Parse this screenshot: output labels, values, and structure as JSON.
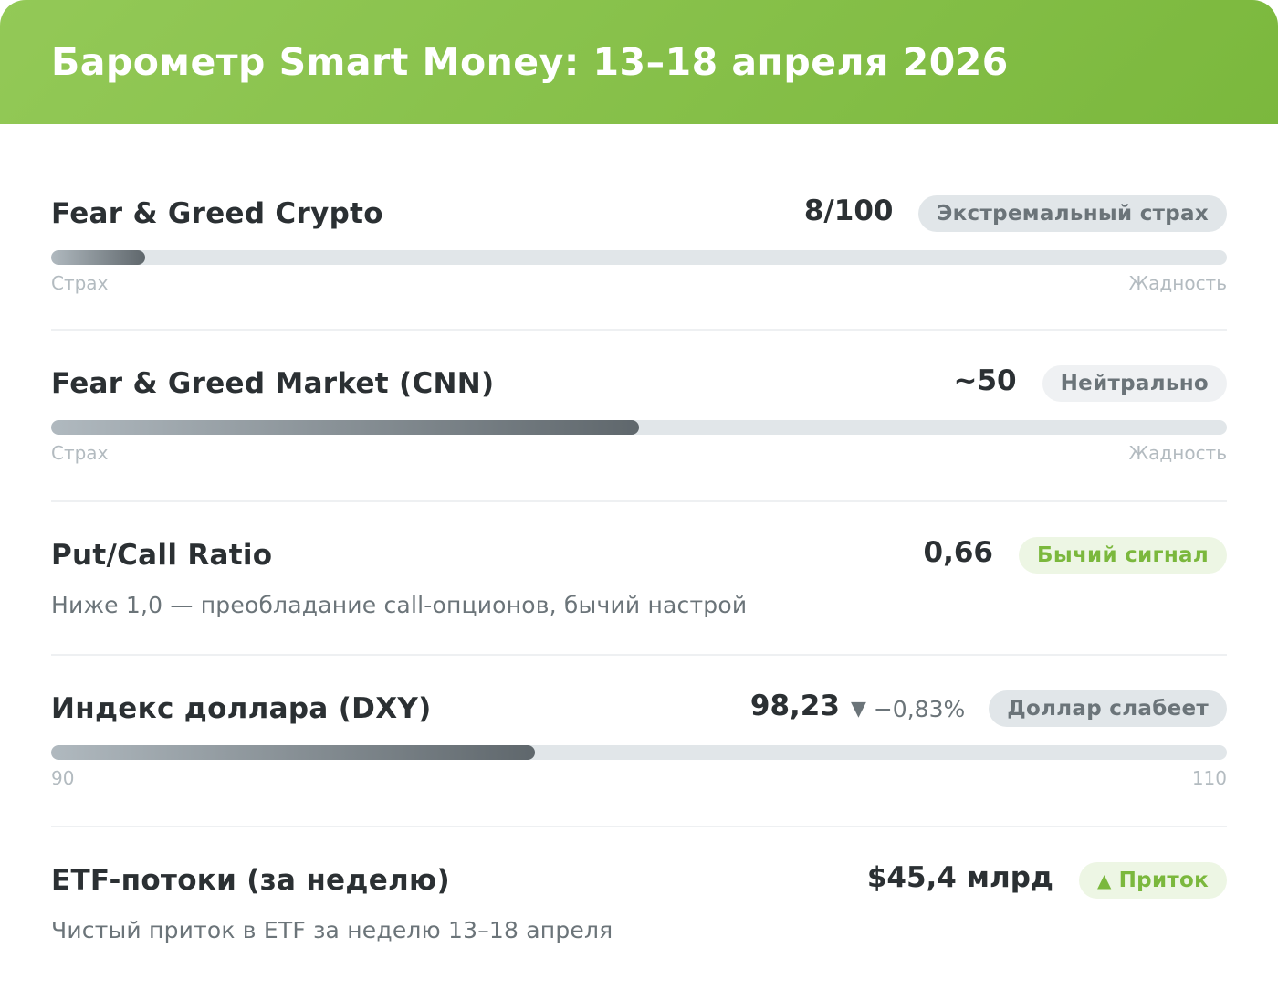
{
  "header": {
    "title": "Барометр Smart Money: 13–18 апреля 2026",
    "colors": {
      "start": "#93c957",
      "end": "#7bb83d"
    }
  },
  "metrics": {
    "crypto": {
      "label": "Fear & Greed Crypto",
      "value": "8/100",
      "badge": "Экстремальный страх",
      "level": 0.08,
      "scale_min": "Страх",
      "scale_max": "Жадность"
    },
    "market": {
      "label": "Fear & Greed Market (CNN)",
      "value": "~50",
      "badge": "Нейтрально",
      "level": 0.5,
      "scale_min": "Страх",
      "scale_max": "Жадность"
    },
    "putcall": {
      "label": "Put/Call Ratio",
      "value": "0,66",
      "badge": "Бычий сигнал",
      "description": "Ниже 1,0 — преобладание call-опционов, бычий настрой"
    },
    "dxy": {
      "label": "Индекс доллара (DXY)",
      "value": "98,23",
      "change_arrow": "▼",
      "change": "−0,83%",
      "badge": "Доллар слабеет",
      "level": 0.4115,
      "scale_min": "90",
      "scale_max": "110"
    },
    "etf": {
      "label": "ETF-потоки (за неделю)",
      "value": "$45,4 млрд",
      "badge_arrow": "▲",
      "badge": "Приток",
      "description": "Чистый приток в ETF за неделю 13–18 апреля"
    }
  }
}
